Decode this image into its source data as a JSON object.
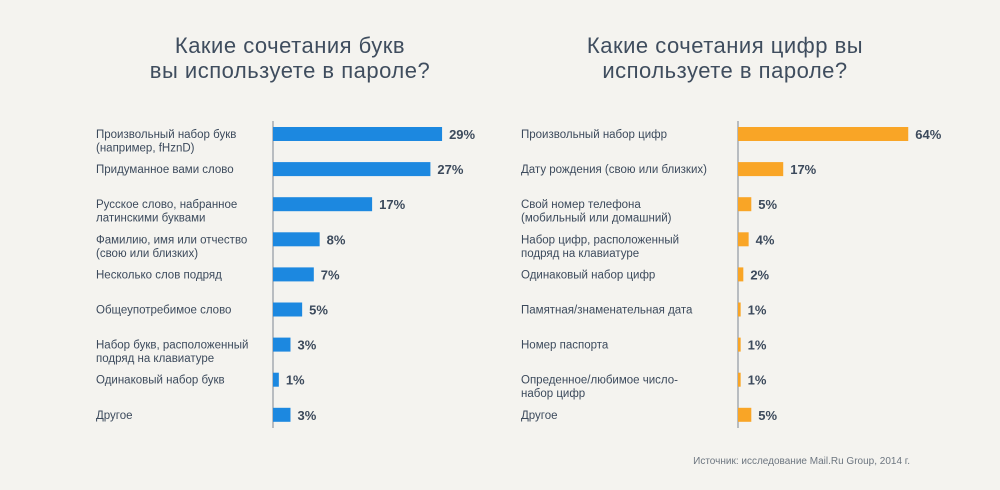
{
  "chart_data": [
    {
      "type": "bar",
      "orientation": "horizontal",
      "title": [
        "Какие сочетания букв",
        "вы используете в пароле?"
      ],
      "categories": [
        [
          "Произвольный набор букв",
          "(например, fHznD)"
        ],
        [
          "Придуманное вами слово"
        ],
        [
          "Русское слово, набранное",
          "латинскими буквами"
        ],
        [
          "Фамилию, имя или отчество",
          "(свою или близких)"
        ],
        [
          "Несколько слов подряд"
        ],
        [
          "Общеупотребимое слово"
        ],
        [
          "Набор букв, расположенный",
          "подряд на клавиатуре"
        ],
        [
          "Одинаковый набор букв"
        ],
        [
          "Другое"
        ]
      ],
      "values": [
        29,
        27,
        17,
        8,
        7,
        5,
        3,
        1,
        3
      ],
      "value_labels": [
        "29%",
        "27%",
        "17%",
        "8%",
        "7%",
        "5%",
        "3%",
        "1%",
        "3%"
      ],
      "color": "#1c88e0",
      "grid": false
    },
    {
      "type": "bar",
      "orientation": "horizontal",
      "title": [
        "Какие сочетания цифр вы",
        "используете в пароле?"
      ],
      "categories": [
        [
          "Произвольный набор цифр"
        ],
        [
          "Дату рождения (свою или близких)"
        ],
        [
          "Свой номер телефона",
          "(мобильный или домашний)"
        ],
        [
          "Набор цифр, расположенный",
          "подряд на клавиатуре"
        ],
        [
          "Одинаковый набор цифр"
        ],
        [
          "Памятная/знаменательная дата"
        ],
        [
          "Номер паспорта"
        ],
        [
          "Опреденное/любимое число-",
          "набор цифр"
        ],
        [
          "Другое"
        ]
      ],
      "values": [
        64,
        17,
        5,
        4,
        2,
        1,
        1,
        1,
        5
      ],
      "value_labels": [
        "64%",
        "17%",
        "5%",
        "4%",
        "2%",
        "1%",
        "1%",
        "1%",
        "5%"
      ],
      "color": "#f9a526",
      "grid": false
    }
  ],
  "source": "Источник: исследование Mail.Ru Group, 2014 г."
}
